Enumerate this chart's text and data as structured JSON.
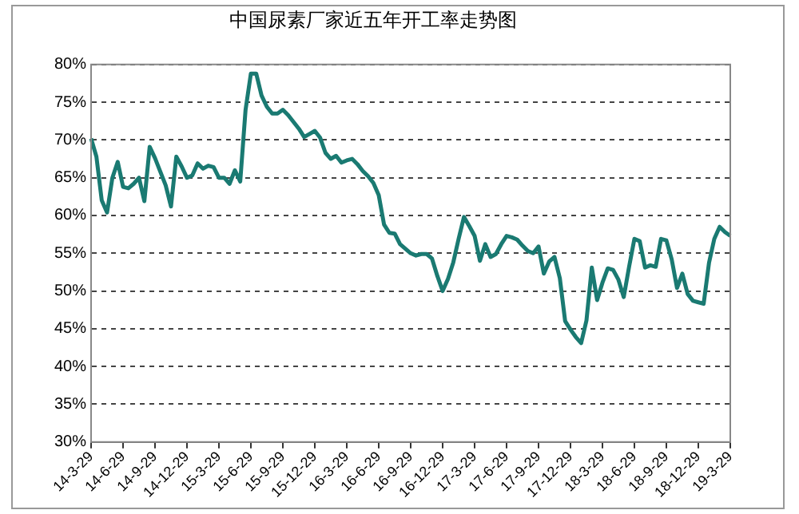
{
  "chart_data": {
    "type": "line",
    "title": "中国尿素厂家近五年开工率走势图",
    "categories": [
      "14-3-29",
      null,
      null,
      null,
      null,
      null,
      "14-6-29",
      null,
      null,
      null,
      null,
      null,
      "14-9-29",
      null,
      null,
      null,
      null,
      null,
      "14-12-29",
      null,
      null,
      null,
      null,
      null,
      "15-3-29",
      null,
      null,
      null,
      null,
      null,
      "15-6-29",
      null,
      null,
      null,
      null,
      null,
      "15-9-29",
      null,
      null,
      null,
      null,
      null,
      "15-12-29",
      null,
      null,
      null,
      null,
      null,
      "16-3-29",
      null,
      null,
      null,
      null,
      null,
      "16-6-29",
      null,
      null,
      null,
      null,
      null,
      "16-9-29",
      null,
      null,
      null,
      null,
      null,
      "16-12-29",
      null,
      null,
      null,
      null,
      null,
      "17-3-29",
      null,
      null,
      null,
      null,
      null,
      "17-6-29",
      null,
      null,
      null,
      null,
      null,
      "17-9-29",
      null,
      null,
      null,
      null,
      null,
      "17-12-29",
      null,
      null,
      null,
      null,
      null,
      "18-3-29",
      null,
      null,
      null,
      null,
      null,
      "18-6-29",
      null,
      null,
      null,
      null,
      null,
      "18-9-29",
      null,
      null,
      null,
      null,
      null,
      "18-12-29",
      null,
      null,
      null,
      null,
      null,
      "19-3-29"
    ],
    "series": [
      {
        "color": "#1a7a72",
        "values": [
          70.2,
          67.8,
          62,
          60.4,
          65,
          67.1,
          63.8,
          63.6,
          64.2,
          65,
          61.9,
          69.1,
          67.6,
          65.8,
          64,
          61.2,
          67.8,
          66.5,
          65,
          65.3,
          66.9,
          66.2,
          66.6,
          66.4,
          65,
          65,
          64.2,
          66,
          64.5,
          74,
          78.8,
          78.8,
          75.9,
          74.4,
          73.5,
          73.5,
          74,
          73.3,
          72.4,
          71.5,
          70.4,
          70.8,
          71.2,
          70.3,
          68.3,
          67.5,
          67.9,
          67,
          67.3,
          67.5,
          66.8,
          65.9,
          65.2,
          64.3,
          62.7,
          58.8,
          57.7,
          57.6,
          56.2,
          55.6,
          55,
          54.7,
          54.9,
          54.9,
          54.3,
          52,
          50,
          51.6,
          53.8,
          56.9,
          59.8,
          58.6,
          57.3,
          54,
          56.2,
          54.5,
          54.9,
          56.2,
          57.3,
          57.1,
          56.8,
          56,
          55.3,
          55,
          55.9,
          52.3,
          53.9,
          54.5,
          51.7,
          46,
          44.9,
          43.9,
          43.1,
          46.1,
          53.1,
          48.8,
          51.1,
          53,
          52.8,
          51.5,
          49.2,
          53.2,
          56.9,
          56.6,
          53.1,
          53.4,
          53.2,
          56.9,
          56.7,
          54.2,
          50.4,
          52.3,
          49.6,
          48.7,
          48.5,
          48.3,
          53.7,
          56.9,
          58.5,
          57.8,
          57.3
        ]
      }
    ],
    "ylim": [
      30,
      80
    ],
    "yticks": [
      {
        "value": 30,
        "label": "30%"
      },
      {
        "value": 35,
        "label": "35%"
      },
      {
        "value": 40,
        "label": "40%"
      },
      {
        "value": 45,
        "label": "45%"
      },
      {
        "value": 50,
        "label": "50%"
      },
      {
        "value": 55,
        "label": "55%"
      },
      {
        "value": 60,
        "label": "60%"
      },
      {
        "value": 65,
        "label": "65%"
      },
      {
        "value": 70,
        "label": "70%"
      },
      {
        "value": 75,
        "label": "75%"
      },
      {
        "value": 80,
        "label": "80%"
      }
    ],
    "grid": "y",
    "legend": false,
    "marker": "none",
    "line_style": "solid"
  }
}
